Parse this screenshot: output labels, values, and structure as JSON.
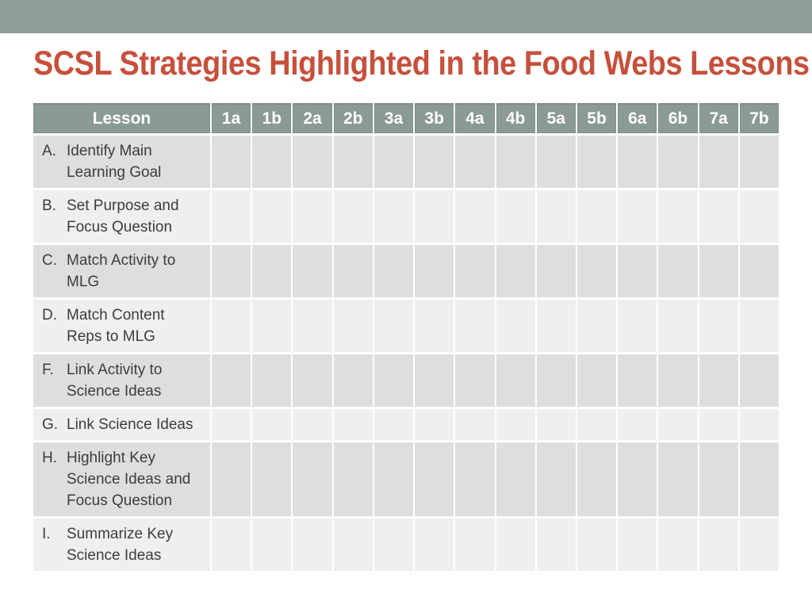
{
  "slide": {
    "title": "SCSL Strategies Highlighted in the Food Webs Lessons"
  },
  "colors": {
    "top_bar": "#8E9D95",
    "table_header_bg": "#8A9B93",
    "table_header_border": "#7C8F88",
    "table_header_text": "#FFFFFF",
    "row_dark": "#DDDEDE",
    "row_light": "#EEEFEF",
    "title_text": "#C6503C",
    "body_text": "#3D3D3D"
  },
  "table": {
    "header": [
      "Lesson",
      "1a",
      "1b",
      "2a",
      "2b",
      "3a",
      "3b",
      "4a",
      "4b",
      "5a",
      "5b",
      "6a",
      "6b",
      "7a",
      "7b"
    ],
    "rows": [
      {
        "letter": "A.",
        "lines": [
          "Identify Main",
          "Learning Goal"
        ]
      },
      {
        "letter": "B.",
        "lines": [
          "Set Purpose and",
          "Focus Question"
        ]
      },
      {
        "letter": "C.",
        "lines": [
          "Match Activity to",
          "MLG"
        ]
      },
      {
        "letter": "D.",
        "lines": [
          "Match Content",
          "Reps to MLG"
        ]
      },
      {
        "letter": "F.",
        "lines": [
          "Link Activity to",
          "Science Ideas"
        ]
      },
      {
        "letter": "G.",
        "lines": [
          "Link Science Ideas"
        ]
      },
      {
        "letter": "H.",
        "lines": [
          "Highlight Key",
          "Science Ideas and",
          "Focus Question"
        ]
      },
      {
        "letter": "I.",
        "lines": [
          "Summarize Key",
          "Science Ideas"
        ]
      }
    ],
    "cell_value": ""
  }
}
